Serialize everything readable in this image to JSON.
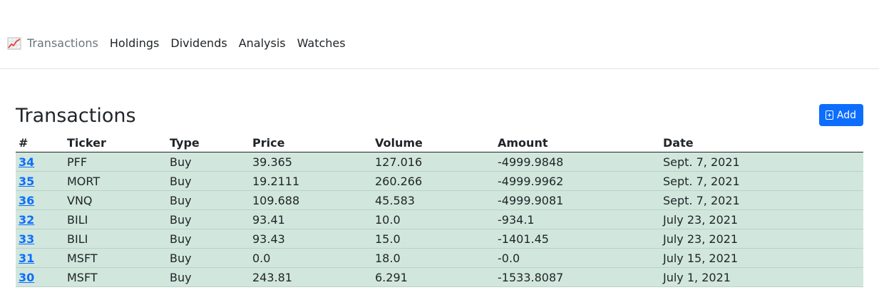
{
  "nav": {
    "brand_label": "Transactions",
    "links": [
      "Holdings",
      "Dividends",
      "Analysis",
      "Watches"
    ]
  },
  "page": {
    "title": "Transactions",
    "add_label": "Add"
  },
  "table": {
    "columns": [
      "#",
      "Ticker",
      "Type",
      "Price",
      "Volume",
      "Amount",
      "Date"
    ],
    "rows": [
      [
        "34",
        "PFF",
        "Buy",
        "39.365",
        "127.016",
        "-4999.9848",
        "Sept. 7, 2021"
      ],
      [
        "35",
        "MORT",
        "Buy",
        "19.2111",
        "260.266",
        "-4999.9962",
        "Sept. 7, 2021"
      ],
      [
        "36",
        "VNQ",
        "Buy",
        "109.688",
        "45.583",
        "-4999.9081",
        "Sept. 7, 2021"
      ],
      [
        "32",
        "BILI",
        "Buy",
        "93.41",
        "10.0",
        "-934.1",
        "July 23, 2021"
      ],
      [
        "33",
        "BILI",
        "Buy",
        "93.43",
        "15.0",
        "-1401.45",
        "July 23, 2021"
      ],
      [
        "31",
        "MSFT",
        "Buy",
        "0.0",
        "18.0",
        "-0.0",
        "July 15, 2021"
      ],
      [
        "30",
        "MSFT",
        "Buy",
        "243.81",
        "6.291",
        "-1533.8087",
        "July 1, 2021"
      ]
    ]
  },
  "colors": {
    "accent": "#0d6efd",
    "row_bg": "#d1e7dd"
  }
}
